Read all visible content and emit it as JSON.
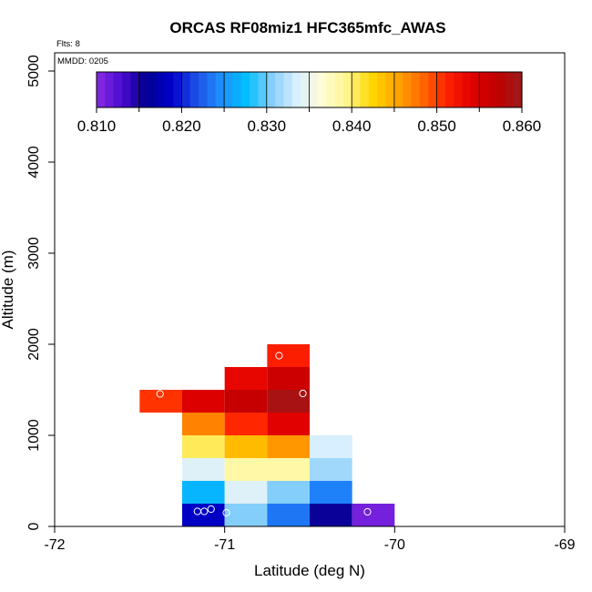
{
  "chart_data": {
    "type": "heatmap",
    "title": "ORCAS RF08miz1 HFC365mfc_AWAS",
    "flights_note": "Flts: 8",
    "date_note": "MMDD: 0205",
    "xlabel": "Latitude (deg N)",
    "ylabel": "Altitude (m)",
    "xlim": [
      -72,
      -69
    ],
    "ylim": [
      0,
      5200
    ],
    "x_ticks": [
      -72,
      -71,
      -70,
      -69
    ],
    "x_tick_labels": [
      "-72",
      "-71",
      "-70",
      "-69"
    ],
    "y_ticks": [
      0,
      1000,
      2000,
      3000,
      4000,
      5000
    ],
    "y_tick_labels": [
      "0",
      "1000",
      "2000",
      "3000",
      "4000",
      "5000"
    ],
    "cell_width": 0.25,
    "cell_height": 250,
    "colorbar": {
      "min": 0.81,
      "max": 0.86,
      "ticks": [
        0.81,
        0.82,
        0.83,
        0.84,
        0.85,
        0.86
      ],
      "tick_labels": [
        "0.810",
        "0.820",
        "0.830",
        "0.840",
        "0.850",
        "0.860"
      ],
      "colors": [
        "#8a2be2",
        "#4b0bd0",
        "#000090",
        "#0000cc",
        "#1e50e6",
        "#1e90ff",
        "#00bfff",
        "#87cefa",
        "#d8efff",
        "#fffdd8",
        "#fff68f",
        "#ffd700",
        "#ffa500",
        "#ff6a00",
        "#ff2200",
        "#e00000",
        "#c00000",
        "#9b1c1c"
      ]
    },
    "cells": [
      {
        "x0": -71.25,
        "y0": 0,
        "value": 0.8185
      },
      {
        "x0": -71.0,
        "y0": 0,
        "value": 0.8305
      },
      {
        "x0": -70.75,
        "y0": 0,
        "value": 0.8235
      },
      {
        "x0": -70.5,
        "y0": 0,
        "value": 0.8155
      },
      {
        "x0": -70.25,
        "y0": 0,
        "value": 0.811
      },
      {
        "x0": -71.25,
        "y0": 250,
        "value": 0.827
      },
      {
        "x0": -71.0,
        "y0": 250,
        "value": 0.834
      },
      {
        "x0": -70.75,
        "y0": 250,
        "value": 0.8305
      },
      {
        "x0": -70.5,
        "y0": 250,
        "value": 0.824
      },
      {
        "x0": -71.25,
        "y0": 500,
        "value": 0.834
      },
      {
        "x0": -71.0,
        "y0": 500,
        "value": 0.8385
      },
      {
        "x0": -70.75,
        "y0": 500,
        "value": 0.8385
      },
      {
        "x0": -70.5,
        "y0": 500,
        "value": 0.8315
      },
      {
        "x0": -71.25,
        "y0": 750,
        "value": 0.8405
      },
      {
        "x0": -71.0,
        "y0": 750,
        "value": 0.844
      },
      {
        "x0": -70.75,
        "y0": 750,
        "value": 0.846
      },
      {
        "x0": -70.5,
        "y0": 750,
        "value": 0.8335
      },
      {
        "x0": -71.25,
        "y0": 1000,
        "value": 0.847
      },
      {
        "x0": -71.0,
        "y0": 1000,
        "value": 0.851
      },
      {
        "x0": -70.75,
        "y0": 1000,
        "value": 0.854
      },
      {
        "x0": -71.5,
        "y0": 1250,
        "value": 0.8505
      },
      {
        "x0": -71.25,
        "y0": 1250,
        "value": 0.8545
      },
      {
        "x0": -71.0,
        "y0": 1250,
        "value": 0.8565
      },
      {
        "x0": -70.75,
        "y0": 1250,
        "value": 0.859
      },
      {
        "x0": -71.0,
        "y0": 1500,
        "value": 0.8535
      },
      {
        "x0": -70.75,
        "y0": 1500,
        "value": 0.856
      },
      {
        "x0": -70.75,
        "y0": 1750,
        "value": 0.8515
      }
    ],
    "sample_points": [
      {
        "lat": -71.16,
        "alt": 165
      },
      {
        "lat": -71.12,
        "alt": 165
      },
      {
        "lat": -71.08,
        "alt": 190
      },
      {
        "lat": -70.99,
        "alt": 150
      },
      {
        "lat": -70.16,
        "alt": 160
      },
      {
        "lat": -71.38,
        "alt": 1455
      },
      {
        "lat": -70.68,
        "alt": 1875
      },
      {
        "lat": -70.54,
        "alt": 1460
      }
    ]
  }
}
